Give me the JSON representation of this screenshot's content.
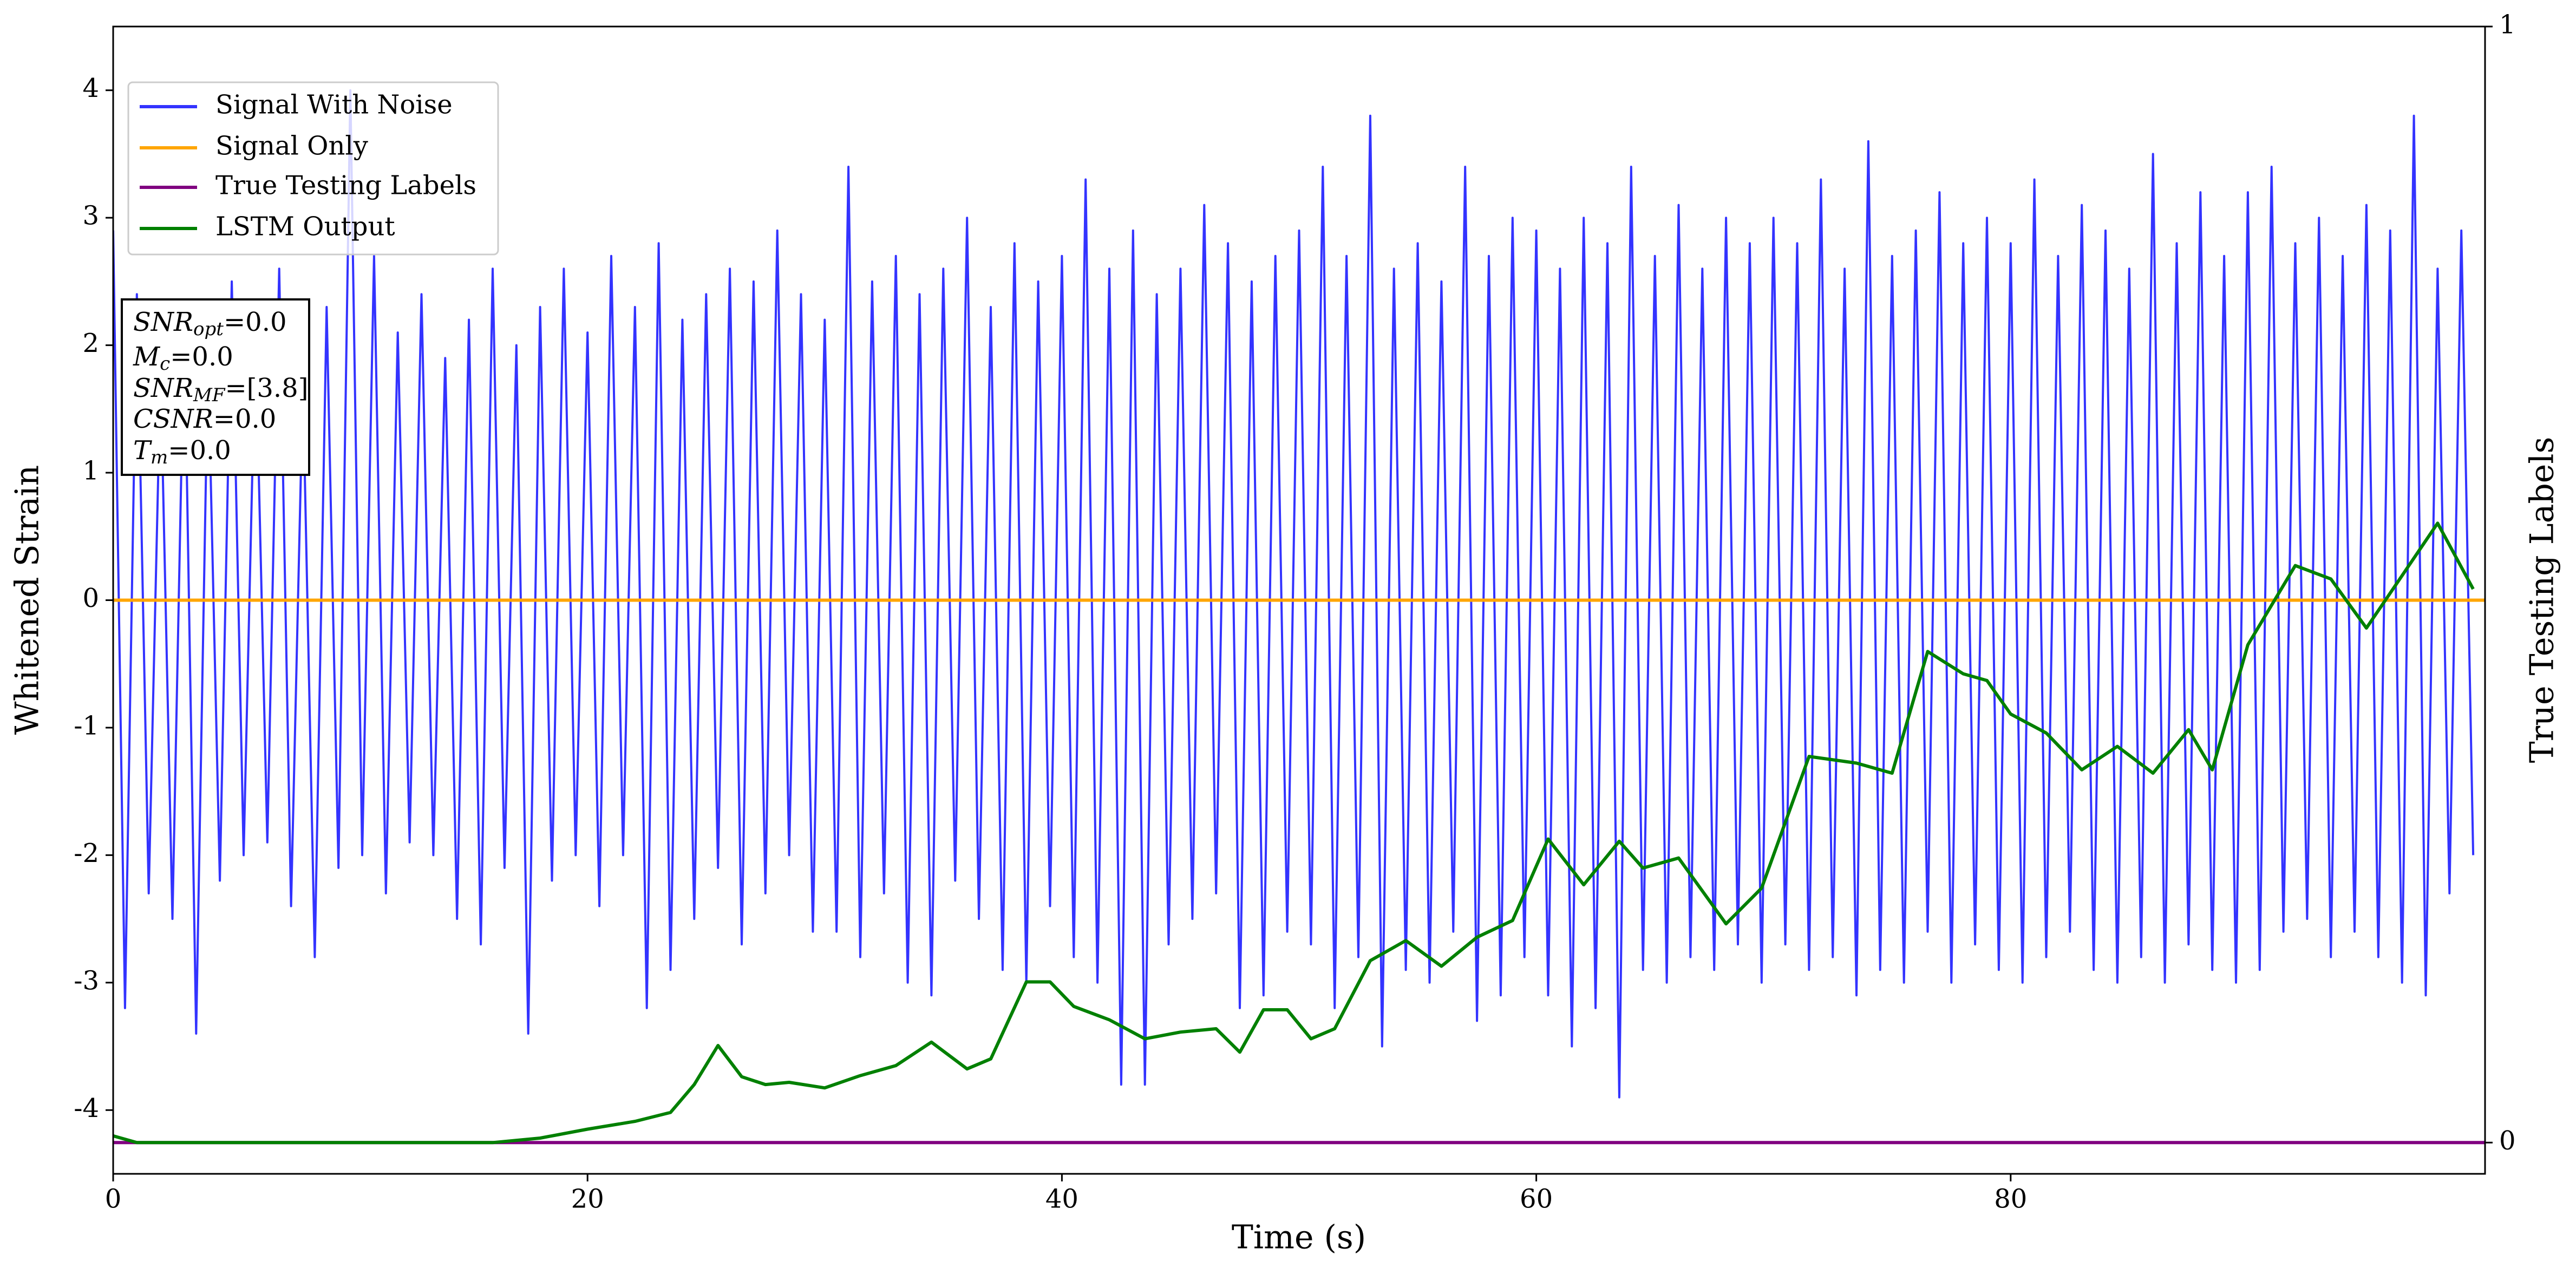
{
  "chart_data": {
    "type": "line",
    "xlabel": "Time (s)",
    "ylabel": "Whitened Strain",
    "y2label": "True Testing Labels",
    "xlim": [
      0,
      100
    ],
    "xticks": [
      0,
      20,
      40,
      60,
      80
    ],
    "ylim": [
      -4.5,
      4.5
    ],
    "yticks": [
      -4,
      -3,
      -2,
      -1,
      0,
      1,
      2,
      3,
      4
    ],
    "y2lim": [
      -0.028,
      1
    ],
    "y2ticks": [
      0,
      1
    ],
    "legend": "upper left",
    "annotations": [
      {
        "main": "SNR",
        "sub": "opt",
        "rest": "=0.0"
      },
      {
        "main": "M",
        "sub": "c",
        "rest": "=0.0"
      },
      {
        "main": "SNR",
        "sub": "MF",
        "rest": "=[3.8]"
      },
      {
        "main": "CSNR",
        "rest": "=0.0"
      },
      {
        "main": "T",
        "sub": "m",
        "rest": "=0.0"
      }
    ],
    "series": [
      {
        "name": "Signal With Noise",
        "color": "#3333ff",
        "x": [
          0,
          0.5,
          1,
          1.5,
          2,
          2.5,
          3,
          3.5,
          4,
          4.5,
          5,
          5.5,
          6,
          6.5,
          7,
          7.5,
          8,
          8.5,
          9,
          9.5,
          10,
          10.5,
          11,
          11.5,
          12,
          12.5,
          13,
          13.5,
          14,
          14.5,
          15,
          15.5,
          16,
          16.5,
          17,
          17.5,
          18,
          18.5,
          19,
          19.5,
          20,
          20.5,
          21,
          21.5,
          22,
          22.5,
          23,
          23.5,
          24,
          24.5,
          25,
          25.5,
          26,
          26.5,
          27,
          27.5,
          28,
          28.5,
          29,
          29.5,
          30,
          30.5,
          31,
          31.5,
          32,
          32.5,
          33,
          33.5,
          34,
          34.5,
          35,
          35.5,
          36,
          36.5,
          37,
          37.5,
          38,
          38.5,
          39,
          39.5,
          40,
          40.5,
          41,
          41.5,
          42,
          42.5,
          43,
          43.5,
          44,
          44.5,
          45,
          45.5,
          46,
          46.5,
          47,
          47.5,
          48,
          48.5,
          49,
          49.5,
          50,
          50.5,
          51,
          51.5,
          52,
          52.5,
          53,
          53.5,
          54,
          54.5,
          55,
          55.5,
          56,
          56.5,
          57,
          57.5,
          58,
          58.5,
          59,
          59.5,
          60,
          60.5,
          61,
          61.5,
          62,
          62.5,
          63,
          63.5,
          64,
          64.5,
          65,
          65.5,
          66,
          66.5,
          67,
          67.5,
          68,
          68.5,
          69,
          69.5,
          70,
          70.5,
          71,
          71.5,
          72,
          72.5,
          73,
          73.5,
          74,
          74.5,
          75,
          75.5,
          76,
          76.5,
          77,
          77.5,
          78,
          78.5,
          79,
          79.5,
          80,
          80.5,
          81,
          81.5,
          82,
          82.5,
          83,
          83.5,
          84,
          84.5,
          85,
          85.5,
          86,
          86.5,
          87,
          87.5,
          88,
          88.5,
          89,
          89.5,
          90,
          90.5,
          91,
          91.5,
          92,
          92.5,
          93,
          93.5,
          94,
          94.5,
          95,
          95.5,
          96,
          96.5,
          97,
          97.5,
          98,
          98.5,
          99,
          99.5
        ],
        "values": [
          2.9,
          -3.2,
          2.4,
          -2.3,
          1.8,
          -2.5,
          2.2,
          -3.4,
          1.9,
          -2.2,
          2.5,
          -2.0,
          2.1,
          -1.9,
          2.6,
          -2.4,
          1.7,
          -2.8,
          2.3,
          -2.1,
          4.0,
          -2.0,
          2.7,
          -2.3,
          2.1,
          -1.9,
          2.4,
          -2.0,
          1.9,
          -2.5,
          2.2,
          -2.7,
          2.6,
          -2.1,
          2.0,
          -3.4,
          2.3,
          -2.2,
          2.6,
          -2.0,
          2.1,
          -2.4,
          2.7,
          -2.0,
          2.3,
          -3.2,
          2.8,
          -2.9,
          2.2,
          -2.5,
          2.4,
          -2.1,
          2.6,
          -2.7,
          2.5,
          -2.3,
          2.9,
          -2.0,
          2.4,
          -2.6,
          2.2,
          -2.6,
          3.4,
          -2.8,
          2.5,
          -2.3,
          2.7,
          -3.0,
          2.4,
          -3.1,
          2.6,
          -2.2,
          3.0,
          -2.5,
          2.3,
          -2.9,
          2.8,
          -3.0,
          2.5,
          -2.4,
          2.7,
          -2.8,
          3.3,
          -3.0,
          2.6,
          -3.8,
          2.9,
          -3.8,
          2.4,
          -2.7,
          2.6,
          -2.5,
          3.1,
          -2.3,
          2.8,
          -3.2,
          2.5,
          -3.1,
          2.7,
          -2.6,
          2.9,
          -2.7,
          3.4,
          -3.2,
          2.7,
          -2.8,
          3.8,
          -3.5,
          2.6,
          -2.9,
          2.8,
          -3.0,
          2.5,
          -2.6,
          3.4,
          -3.3,
          2.7,
          -3.1,
          3.0,
          -2.8,
          2.9,
          -3.1,
          2.6,
          -3.5,
          3.0,
          -3.2,
          2.8,
          -3.9,
          3.4,
          -2.9,
          2.7,
          -3.0,
          3.1,
          -2.8,
          2.6,
          -2.9,
          3.0,
          -2.7,
          2.8,
          -3.0,
          3.0,
          -2.7,
          2.8,
          -2.9,
          3.3,
          -2.8,
          2.6,
          -3.1,
          3.6,
          -2.9,
          2.7,
          -3.0,
          2.9,
          -2.6,
          3.2,
          -3.0,
          2.8,
          -2.7,
          3.0,
          -2.9,
          2.8,
          -3.0,
          3.3,
          -2.8,
          2.7,
          -2.6,
          3.1,
          -2.9,
          2.9,
          -3.0,
          2.6,
          -2.8,
          3.5,
          -3.0,
          2.8,
          -2.7,
          3.2,
          -2.9,
          2.7,
          -3.0,
          3.2,
          -2.9,
          3.4,
          -2.6,
          2.8,
          -2.5,
          3.0,
          -2.8,
          2.7,
          -2.6,
          3.1,
          -2.8,
          2.9,
          -3.0,
          3.8,
          -3.1,
          2.6,
          -2.3,
          2.9,
          -2.0
        ]
      },
      {
        "name": "Signal Only",
        "color": "#ffa500",
        "x": [
          0,
          100
        ],
        "values": [
          0,
          0
        ]
      },
      {
        "name": "True Testing Labels",
        "color": "#800080",
        "axis": "y2",
        "x": [
          0,
          100
        ],
        "values": [
          0,
          0
        ]
      },
      {
        "name": "LSTM Output",
        "color": "#008000",
        "axis": "y2",
        "x": [
          0,
          1,
          16,
          18,
          20,
          22,
          23.5,
          24.5,
          25.5,
          26.5,
          27.5,
          28.5,
          30,
          31.5,
          33,
          34.5,
          36,
          37,
          38.5,
          39.5,
          40.5,
          42,
          43.5,
          45,
          46.5,
          47.5,
          48.5,
          49.5,
          50.5,
          51.5,
          53,
          54.5,
          56,
          57.5,
          59,
          60.5,
          62,
          63.5,
          64.5,
          66,
          68,
          69.5,
          71.5,
          73.5,
          75,
          76.5,
          78,
          79,
          80,
          81.5,
          83,
          84.5,
          86,
          87.5,
          88.5,
          90,
          92,
          93.5,
          95,
          96.5,
          98,
          99.5
        ],
        "values": [
          0.006,
          0,
          0,
          0.004,
          0.012,
          0.019,
          0.027,
          0.052,
          0.087,
          0.059,
          0.052,
          0.054,
          0.049,
          0.06,
          0.069,
          0.09,
          0.066,
          0.075,
          0.144,
          0.144,
          0.122,
          0.11,
          0.093,
          0.099,
          0.102,
          0.081,
          0.119,
          0.119,
          0.093,
          0.102,
          0.163,
          0.181,
          0.158,
          0.184,
          0.199,
          0.272,
          0.231,
          0.27,
          0.246,
          0.255,
          0.196,
          0.228,
          0.346,
          0.34,
          0.331,
          0.44,
          0.42,
          0.414,
          0.384,
          0.367,
          0.334,
          0.355,
          0.331,
          0.37,
          0.334,
          0.446,
          0.517,
          0.505,
          0.461,
          0.508,
          0.555,
          0.496
        ]
      }
    ]
  }
}
